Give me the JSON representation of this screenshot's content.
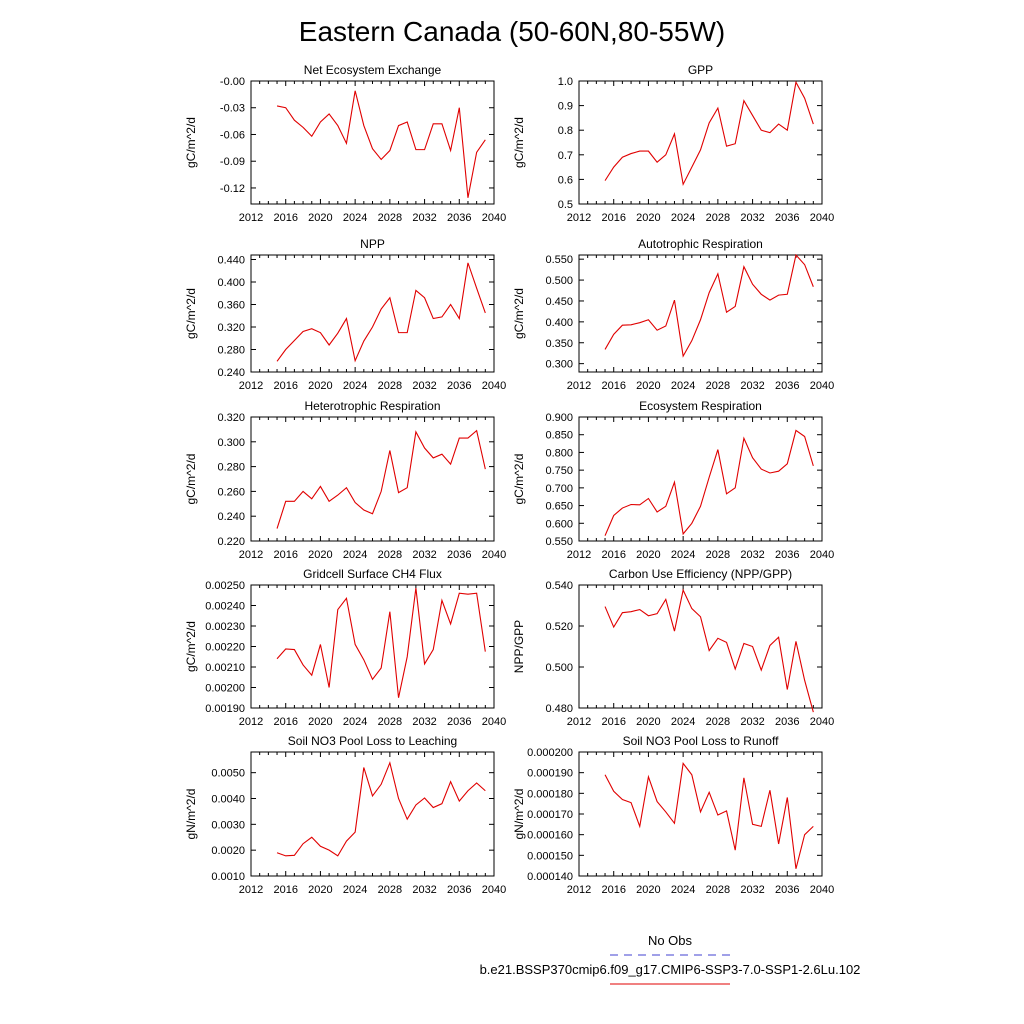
{
  "figure": {
    "title": "Eastern Canada (50-60N,80-55W)"
  },
  "legend": {
    "entries": [
      {
        "label": "No Obs",
        "color": "#4040d0",
        "dashed": true
      },
      {
        "label": "b.e21.BSSP370cmip6.f09_g17.CMIP6-SSP3-7.0-SSP1-2.6Lu.102",
        "color": "#e00000",
        "dashed": false
      }
    ]
  },
  "chart_data": [
    {
      "type": "line",
      "title": "Net Ecosystem Exchange",
      "ylabel": "gC/m^2/d",
      "xlim": [
        2012,
        2040
      ],
      "ylim": [
        -0.138,
        0
      ],
      "xticks": [
        2012,
        2016,
        2020,
        2024,
        2028,
        2032,
        2036,
        2040
      ],
      "yticks": [
        -0.12,
        -0.09,
        -0.06,
        -0.03,
        0
      ],
      "ytick_labels": [
        "-0.12",
        "-0.09",
        "-0.06",
        "-0.03",
        "-0.00"
      ],
      "x": [
        2015,
        2016,
        2017,
        2018,
        2019,
        2020,
        2021,
        2022,
        2023,
        2024,
        2025,
        2026,
        2027,
        2028,
        2029,
        2030,
        2031,
        2032,
        2033,
        2034,
        2035,
        2036,
        2037,
        2038,
        2039
      ],
      "series": [
        {
          "color": "#e00000",
          "values": [
            -0.028,
            -0.03,
            -0.044,
            -0.052,
            -0.062,
            -0.046,
            -0.037,
            -0.05,
            -0.07,
            -0.011,
            -0.05,
            -0.076,
            -0.088,
            -0.078,
            -0.05,
            -0.046,
            -0.077,
            -0.077,
            -0.048,
            -0.048,
            -0.078,
            -0.03,
            -0.131,
            -0.08,
            -0.066
          ]
        }
      ]
    },
    {
      "type": "line",
      "title": "GPP",
      "ylabel": "gC/m^2/d",
      "xlim": [
        2012,
        2040
      ],
      "ylim": [
        0.5,
        1.0
      ],
      "xticks": [
        2012,
        2016,
        2020,
        2024,
        2028,
        2032,
        2036,
        2040
      ],
      "yticks": [
        0.5,
        0.6,
        0.7,
        0.8,
        0.9,
        1.0
      ],
      "ytick_labels": [
        "0.5",
        "0.6",
        "0.7",
        "0.8",
        "0.9",
        "1.0"
      ],
      "x": [
        2015,
        2016,
        2017,
        2018,
        2019,
        2020,
        2021,
        2022,
        2023,
        2024,
        2025,
        2026,
        2027,
        2028,
        2029,
        2030,
        2031,
        2032,
        2033,
        2034,
        2035,
        2036,
        2037,
        2038,
        2039
      ],
      "series": [
        {
          "color": "#e00000",
          "values": [
            0.595,
            0.65,
            0.69,
            0.705,
            0.715,
            0.715,
            0.67,
            0.7,
            0.785,
            0.58,
            0.65,
            0.72,
            0.83,
            0.89,
            0.735,
            0.745,
            0.92,
            0.86,
            0.8,
            0.79,
            0.825,
            0.8,
            0.995,
            0.93,
            0.825
          ]
        }
      ]
    },
    {
      "type": "line",
      "title": "NPP",
      "ylabel": "gC/m^2/d",
      "xlim": [
        2012,
        2040
      ],
      "ylim": [
        0.24,
        0.448
      ],
      "xticks": [
        2012,
        2016,
        2020,
        2024,
        2028,
        2032,
        2036,
        2040
      ],
      "yticks": [
        0.24,
        0.28,
        0.32,
        0.36,
        0.4,
        0.44
      ],
      "ytick_labels": [
        "0.240",
        "0.280",
        "0.320",
        "0.360",
        "0.400",
        "0.440"
      ],
      "x": [
        2015,
        2016,
        2017,
        2018,
        2019,
        2020,
        2021,
        2022,
        2023,
        2024,
        2025,
        2026,
        2027,
        2028,
        2029,
        2030,
        2031,
        2032,
        2033,
        2034,
        2035,
        2036,
        2037,
        2038,
        2039
      ],
      "series": [
        {
          "color": "#e00000",
          "values": [
            0.259,
            0.28,
            0.296,
            0.312,
            0.317,
            0.31,
            0.288,
            0.309,
            0.335,
            0.26,
            0.295,
            0.32,
            0.352,
            0.372,
            0.31,
            0.31,
            0.385,
            0.372,
            0.335,
            0.338,
            0.36,
            0.335,
            0.434,
            0.389,
            0.345
          ]
        }
      ]
    },
    {
      "type": "line",
      "title": "Autotrophic Respiration",
      "ylabel": "gC/m^2/d",
      "xlim": [
        2012,
        2040
      ],
      "ylim": [
        0.28,
        0.56
      ],
      "xticks": [
        2012,
        2016,
        2020,
        2024,
        2028,
        2032,
        2036,
        2040
      ],
      "yticks": [
        0.3,
        0.35,
        0.4,
        0.45,
        0.5,
        0.55
      ],
      "ytick_labels": [
        "0.300",
        "0.350",
        "0.400",
        "0.450",
        "0.500",
        "0.550"
      ],
      "x": [
        2015,
        2016,
        2017,
        2018,
        2019,
        2020,
        2021,
        2022,
        2023,
        2024,
        2025,
        2026,
        2027,
        2028,
        2029,
        2030,
        2031,
        2032,
        2033,
        2034,
        2035,
        2036,
        2037,
        2038,
        2039
      ],
      "series": [
        {
          "color": "#e00000",
          "values": [
            0.334,
            0.37,
            0.392,
            0.393,
            0.398,
            0.405,
            0.38,
            0.39,
            0.452,
            0.318,
            0.355,
            0.405,
            0.47,
            0.515,
            0.423,
            0.437,
            0.532,
            0.49,
            0.466,
            0.452,
            0.464,
            0.466,
            0.56,
            0.537,
            0.484
          ]
        }
      ]
    },
    {
      "type": "line",
      "title": "Heterotrophic Respiration",
      "ylabel": "gC/m^2/d",
      "xlim": [
        2012,
        2040
      ],
      "ylim": [
        0.22,
        0.32
      ],
      "xticks": [
        2012,
        2016,
        2020,
        2024,
        2028,
        2032,
        2036,
        2040
      ],
      "yticks": [
        0.22,
        0.24,
        0.26,
        0.28,
        0.3,
        0.32
      ],
      "ytick_labels": [
        "0.220",
        "0.240",
        "0.260",
        "0.280",
        "0.300",
        "0.320"
      ],
      "x": [
        2015,
        2016,
        2017,
        2018,
        2019,
        2020,
        2021,
        2022,
        2023,
        2024,
        2025,
        2026,
        2027,
        2028,
        2029,
        2030,
        2031,
        2032,
        2033,
        2034,
        2035,
        2036,
        2037,
        2038,
        2039
      ],
      "series": [
        {
          "color": "#e00000",
          "values": [
            0.23,
            0.252,
            0.252,
            0.26,
            0.254,
            0.264,
            0.252,
            0.257,
            0.263,
            0.251,
            0.245,
            0.242,
            0.26,
            0.293,
            0.259,
            0.263,
            0.308,
            0.295,
            0.287,
            0.29,
            0.282,
            0.303,
            0.303,
            0.309,
            0.278
          ]
        }
      ]
    },
    {
      "type": "line",
      "title": "Ecosystem Respiration",
      "ylabel": "gC/m^2/d",
      "xlim": [
        2012,
        2040
      ],
      "ylim": [
        0.55,
        0.9
      ],
      "xticks": [
        2012,
        2016,
        2020,
        2024,
        2028,
        2032,
        2036,
        2040
      ],
      "yticks": [
        0.55,
        0.6,
        0.65,
        0.7,
        0.75,
        0.8,
        0.85,
        0.9
      ],
      "ytick_labels": [
        "0.550",
        "0.600",
        "0.650",
        "0.700",
        "0.750",
        "0.800",
        "0.850",
        "0.900"
      ],
      "x": [
        2015,
        2016,
        2017,
        2018,
        2019,
        2020,
        2021,
        2022,
        2023,
        2024,
        2025,
        2026,
        2027,
        2028,
        2029,
        2030,
        2031,
        2032,
        2033,
        2034,
        2035,
        2036,
        2037,
        2038,
        2039
      ],
      "series": [
        {
          "color": "#e00000",
          "values": [
            0.565,
            0.622,
            0.643,
            0.653,
            0.652,
            0.67,
            0.632,
            0.648,
            0.716,
            0.57,
            0.6,
            0.648,
            0.73,
            0.808,
            0.683,
            0.7,
            0.84,
            0.785,
            0.753,
            0.742,
            0.747,
            0.768,
            0.862,
            0.845,
            0.762
          ]
        }
      ]
    },
    {
      "type": "line",
      "title": "Gridcell Surface CH4 Flux",
      "ylabel": "gC/m^2/d",
      "xlim": [
        2012,
        2040
      ],
      "ylim": [
        0.0019,
        0.0025
      ],
      "xticks": [
        2012,
        2016,
        2020,
        2024,
        2028,
        2032,
        2036,
        2040
      ],
      "yticks": [
        0.0019,
        0.002,
        0.0021,
        0.0022,
        0.0023,
        0.0024,
        0.0025
      ],
      "ytick_labels": [
        "0.00190",
        "0.00200",
        "0.00210",
        "0.00220",
        "0.00230",
        "0.00240",
        "0.00250"
      ],
      "x": [
        2015,
        2016,
        2017,
        2018,
        2019,
        2020,
        2021,
        2022,
        2023,
        2024,
        2025,
        2026,
        2027,
        2028,
        2029,
        2030,
        2031,
        2032,
        2033,
        2034,
        2035,
        2036,
        2037,
        2038,
        2039
      ],
      "series": [
        {
          "color": "#e00000",
          "values": [
            0.00214,
            0.002188,
            0.002185,
            0.00211,
            0.00206,
            0.00221,
            0.002,
            0.00238,
            0.002435,
            0.00221,
            0.002135,
            0.00204,
            0.002095,
            0.00237,
            0.00195,
            0.00215,
            0.002485,
            0.002115,
            0.002185,
            0.002425,
            0.00231,
            0.00246,
            0.002455,
            0.00246,
            0.002175
          ]
        }
      ]
    },
    {
      "type": "line",
      "title": "Carbon Use Efficiency (NPP/GPP)",
      "ylabel": "NPP/GPP",
      "xlim": [
        2012,
        2040
      ],
      "ylim": [
        0.48,
        0.54
      ],
      "xticks": [
        2012,
        2016,
        2020,
        2024,
        2028,
        2032,
        2036,
        2040
      ],
      "yticks": [
        0.48,
        0.5,
        0.52,
        0.54
      ],
      "ytick_labels": [
        "0.480",
        "0.500",
        "0.520",
        "0.540"
      ],
      "x": [
        2015,
        2016,
        2017,
        2018,
        2019,
        2020,
        2021,
        2022,
        2023,
        2024,
        2025,
        2026,
        2027,
        2028,
        2029,
        2030,
        2031,
        2032,
        2033,
        2034,
        2035,
        2036,
        2037,
        2038,
        2039
      ],
      "series": [
        {
          "color": "#e00000",
          "values": [
            0.5295,
            0.5195,
            0.5265,
            0.527,
            0.528,
            0.525,
            0.526,
            0.533,
            0.5175,
            0.5375,
            0.5285,
            0.5245,
            0.508,
            0.514,
            0.512,
            0.499,
            0.5115,
            0.51,
            0.4985,
            0.5105,
            0.5145,
            0.489,
            0.5125,
            0.4935,
            0.478
          ]
        }
      ]
    },
    {
      "type": "line",
      "title": "Soil NO3 Pool Loss to Leaching",
      "ylabel": "gN/m^2/d",
      "xlim": [
        2012,
        2040
      ],
      "ylim": [
        0.001,
        0.0058
      ],
      "xticks": [
        2012,
        2016,
        2020,
        2024,
        2028,
        2032,
        2036,
        2040
      ],
      "yticks": [
        0.001,
        0.002,
        0.003,
        0.004,
        0.005
      ],
      "ytick_labels": [
        "0.0010",
        "0.0020",
        "0.0030",
        "0.0040",
        "0.0050"
      ],
      "x": [
        2015,
        2016,
        2017,
        2018,
        2019,
        2020,
        2021,
        2022,
        2023,
        2024,
        2025,
        2026,
        2027,
        2028,
        2029,
        2030,
        2031,
        2032,
        2033,
        2034,
        2035,
        2036,
        2037,
        2038,
        2039
      ],
      "series": [
        {
          "color": "#e00000",
          "values": [
            0.0019,
            0.00178,
            0.0018,
            0.00225,
            0.0025,
            0.00215,
            0.002,
            0.00178,
            0.00235,
            0.0027,
            0.0052,
            0.0041,
            0.00455,
            0.00538,
            0.004,
            0.0032,
            0.00375,
            0.00402,
            0.00365,
            0.0038,
            0.00465,
            0.0039,
            0.0043,
            0.0046,
            0.0043
          ]
        }
      ]
    },
    {
      "type": "line",
      "title": "Soil NO3 Pool Loss to Runoff",
      "ylabel": "gN/m^2/d",
      "xlim": [
        2012,
        2040
      ],
      "ylim": [
        0.00014,
        0.0002
      ],
      "xticks": [
        2012,
        2016,
        2020,
        2024,
        2028,
        2032,
        2036,
        2040
      ],
      "yticks": [
        0.00014,
        0.00015,
        0.00016,
        0.00017,
        0.00018,
        0.00019,
        0.0002
      ],
      "ytick_labels": [
        "0.000140",
        "0.000150",
        "0.000160",
        "0.000170",
        "0.000180",
        "0.000190",
        "0.000200"
      ],
      "x": [
        2015,
        2016,
        2017,
        2018,
        2019,
        2020,
        2021,
        2022,
        2023,
        2024,
        2025,
        2026,
        2027,
        2028,
        2029,
        2030,
        2031,
        2032,
        2033,
        2034,
        2035,
        2036,
        2037,
        2038,
        2039
      ],
      "series": [
        {
          "color": "#e00000",
          "values": [
            0.000189,
            0.000181,
            0.000177,
            0.0001755,
            0.000164,
            0.000188,
            0.000176,
            0.000171,
            0.0001655,
            0.0001945,
            0.000189,
            0.000171,
            0.0001805,
            0.0001695,
            0.0001715,
            0.0001525,
            0.0001875,
            0.000165,
            0.000164,
            0.0001815,
            0.0001555,
            0.000178,
            0.0001435,
            0.00016,
            0.000164
          ]
        }
      ]
    }
  ]
}
